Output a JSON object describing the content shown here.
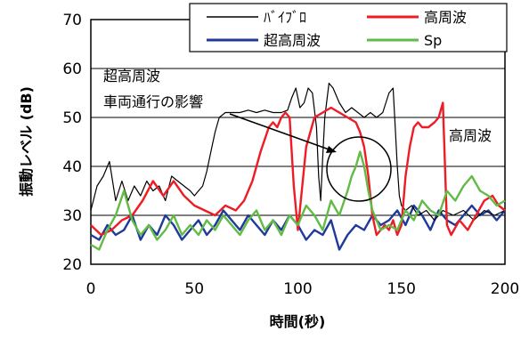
{
  "chart_data": {
    "type": "line",
    "xlabel": "時間(秒)",
    "ylabel": "振動レベル (dB)",
    "xlim": [
      0,
      200
    ],
    "ylim": [
      20,
      70
    ],
    "xticks": [
      0,
      50,
      100,
      150,
      200
    ],
    "yticks": [
      20,
      30,
      40,
      50,
      60,
      70
    ],
    "grid": "horizontal",
    "legend_position": "top-right",
    "series": [
      {
        "name": "ﾊﾞｲﾌﾞﾛ",
        "color": "#000000",
        "x": [
          0,
          3,
          6,
          9,
          12,
          15,
          18,
          21,
          24,
          27,
          30,
          33,
          36,
          39,
          42,
          45,
          48,
          50,
          52,
          54,
          56,
          58,
          60,
          62,
          65,
          68,
          72,
          76,
          80,
          84,
          88,
          92,
          95,
          97,
          99,
          101,
          103,
          105,
          107,
          109,
          110,
          111,
          112,
          113,
          115,
          117,
          120,
          123,
          126,
          129,
          132,
          135,
          138,
          141,
          144,
          146,
          147,
          148,
          149,
          150,
          152,
          155,
          158,
          162,
          166,
          170,
          175,
          180,
          185,
          190,
          195,
          200
        ],
        "y": [
          31,
          36,
          38,
          41,
          33,
          37,
          33,
          36,
          34,
          37,
          35,
          36,
          33,
          38,
          37,
          36,
          35,
          34,
          35,
          36,
          39,
          43,
          47,
          50,
          51,
          51,
          51,
          51.5,
          51,
          51.5,
          51,
          51,
          51.5,
          54,
          56,
          52,
          53,
          56,
          55,
          48,
          38,
          33,
          42,
          50,
          57,
          56,
          53,
          51,
          52,
          51,
          50,
          51,
          50,
          51,
          55,
          56,
          48,
          40,
          34,
          32,
          31,
          32,
          30,
          31,
          29,
          31,
          30,
          31,
          29,
          31,
          30,
          31
        ]
      },
      {
        "name": "高周波",
        "color": "#ee1c24",
        "x": [
          0,
          5,
          10,
          15,
          20,
          25,
          30,
          35,
          40,
          45,
          50,
          55,
          60,
          65,
          70,
          74,
          78,
          82,
          86,
          88,
          90,
          92,
          94,
          96,
          98,
          100,
          104,
          108,
          112,
          116,
          120,
          124,
          128,
          130,
          132,
          134,
          136,
          138,
          140,
          142,
          144,
          146,
          148,
          150,
          152,
          154,
          156,
          158,
          160,
          163,
          166,
          168,
          170,
          172,
          174,
          178,
          182,
          186,
          190,
          194,
          197,
          200
        ],
        "y": [
          28,
          26,
          27,
          29,
          30,
          33,
          37,
          34,
          37,
          34,
          32,
          31,
          30,
          32,
          31,
          33,
          37,
          43,
          48,
          49,
          48,
          50,
          51,
          50,
          36,
          27,
          44,
          50,
          51,
          52,
          51,
          50,
          49,
          47,
          44,
          38,
          30,
          26,
          27,
          28,
          27,
          29,
          26,
          28,
          38,
          44,
          48,
          49,
          48,
          48,
          49,
          50,
          53,
          28,
          26,
          29,
          27,
          30,
          33,
          34,
          32,
          31
        ]
      },
      {
        "name": "超高周波",
        "color": "#1f3a9a",
        "x": [
          0,
          4,
          8,
          12,
          16,
          20,
          24,
          28,
          32,
          36,
          40,
          44,
          48,
          52,
          56,
          60,
          64,
          68,
          72,
          76,
          80,
          84,
          88,
          92,
          96,
          100,
          104,
          108,
          112,
          116,
          120,
          124,
          128,
          132,
          136,
          140,
          144,
          148,
          152,
          156,
          160,
          164,
          168,
          172,
          176,
          180,
          184,
          188,
          192,
          196,
          200
        ],
        "y": [
          26,
          25,
          28,
          26,
          27,
          30,
          25,
          28,
          26,
          30,
          28,
          25,
          27,
          29,
          26,
          28,
          31,
          29,
          27,
          30,
          28,
          26,
          29,
          27,
          30,
          28,
          25,
          27,
          26,
          29,
          23,
          26,
          28,
          27,
          30,
          28,
          29,
          31,
          28,
          32,
          30,
          27,
          31,
          29,
          28,
          30,
          32,
          30,
          31,
          29,
          31
        ]
      },
      {
        "name": "Sp",
        "color": "#62bb46",
        "x": [
          0,
          4,
          8,
          12,
          16,
          20,
          24,
          28,
          32,
          36,
          40,
          44,
          48,
          52,
          56,
          60,
          64,
          68,
          72,
          76,
          80,
          84,
          88,
          92,
          96,
          100,
          104,
          108,
          112,
          116,
          120,
          124,
          126,
          128,
          130,
          132,
          134,
          136,
          138,
          140,
          144,
          148,
          152,
          156,
          160,
          164,
          168,
          172,
          176,
          180,
          184,
          188,
          192,
          196,
          200
        ],
        "y": [
          24,
          23,
          27,
          30,
          35,
          29,
          26,
          28,
          25,
          27,
          30,
          26,
          28,
          26,
          29,
          27,
          30,
          28,
          26,
          29,
          31,
          27,
          29,
          26,
          30,
          28,
          32,
          30,
          27,
          33,
          30,
          35,
          38,
          40,
          43,
          40,
          35,
          31,
          29,
          27,
          28,
          27,
          31,
          29,
          33,
          31,
          30,
          35,
          33,
          36,
          38,
          35,
          34,
          32,
          33
        ]
      }
    ],
    "annotations": {
      "label_ultra": "超高周波",
      "label_traffic": "車両通行の影響",
      "label_high": "高周波"
    }
  }
}
